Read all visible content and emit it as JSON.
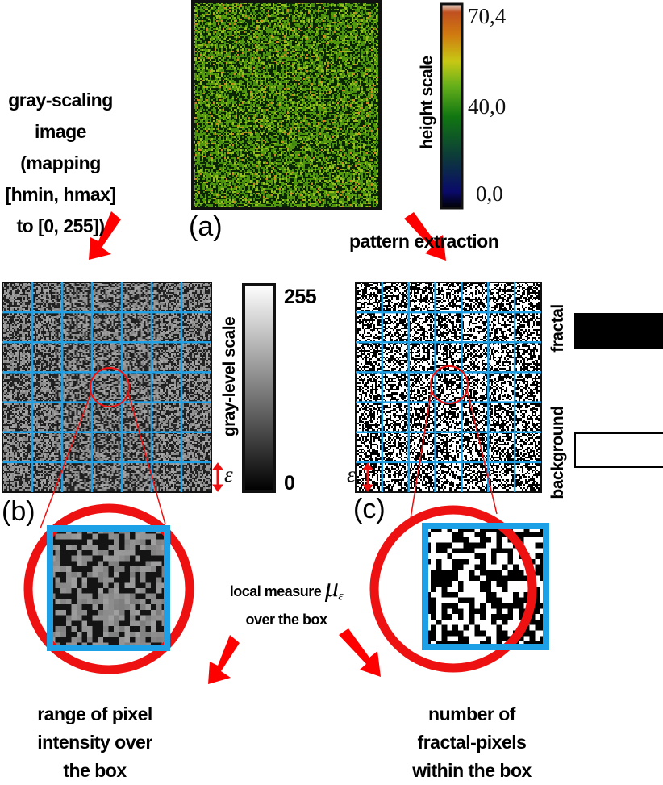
{
  "panel_a": {
    "label": "(a)",
    "colorbar_title": "height scale",
    "colorbar_ticks": [
      "70,4",
      "40,0",
      "0,0"
    ]
  },
  "left_note": [
    "gray-scaling",
    "image",
    "(mapping",
    "[hmin, hmax]",
    "to [0, 255])"
  ],
  "right_note": "pattern extraction",
  "panel_b": {
    "label": "(b)",
    "colorbar_title": "gray-level scale",
    "colorbar_ticks": [
      "255",
      "0"
    ],
    "epsilon": "ε"
  },
  "panel_c": {
    "label": "(c)",
    "epsilon": "ε",
    "legend": [
      {
        "label": "fractal",
        "color": "#000000"
      },
      {
        "label": "background",
        "color": "#ffffff"
      }
    ]
  },
  "middle_note": {
    "line1": "local measure",
    "symbol": "μ",
    "subscript": "ε",
    "line2": "over the box"
  },
  "bottom_left": [
    "range of pixel",
    "intensity over",
    "the box"
  ],
  "bottom_right": [
    "number of",
    "fractal-pixels",
    "within the box"
  ],
  "colors": {
    "arrow": "#ff0000",
    "grid": "#1ea0e6",
    "circle": "#ee1111"
  }
}
